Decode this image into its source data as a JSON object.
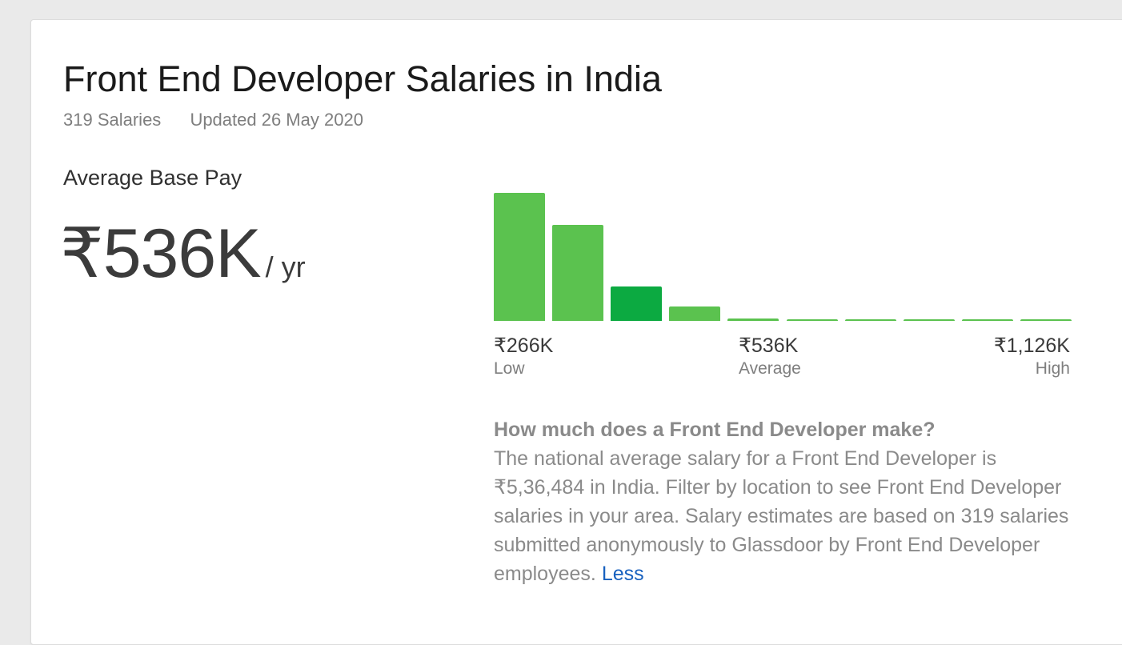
{
  "header": {
    "title": "Front End Developer Salaries in India",
    "salary_count": "319 Salaries",
    "updated": "Updated 26 May 2020"
  },
  "average": {
    "label": "Average Base Pay",
    "value": "₹536K",
    "unit": "/ yr"
  },
  "chart_data": {
    "type": "bar",
    "values": [
      100,
      75,
      27,
      11,
      2,
      1,
      1,
      1,
      1,
      1
    ],
    "highlight_index": 2,
    "colors": {
      "bar": "#5bc24f",
      "highlight": "#0caa41"
    },
    "range": {
      "low_value": "₹266K",
      "low_label": "Low",
      "avg_value": "₹536K",
      "avg_label": "Average",
      "high_value": "₹1,126K",
      "high_label": "High"
    }
  },
  "description": {
    "question": "How much does a Front End Developer make?",
    "body": "The national average salary for a Front End Developer is ₹5,36,484 in India. Filter by location to see Front End Developer salaries in your area. Salary estimates are based on 319 salaries submitted anonymously to Glassdoor by Front End Developer employees.",
    "less_link": "Less"
  }
}
